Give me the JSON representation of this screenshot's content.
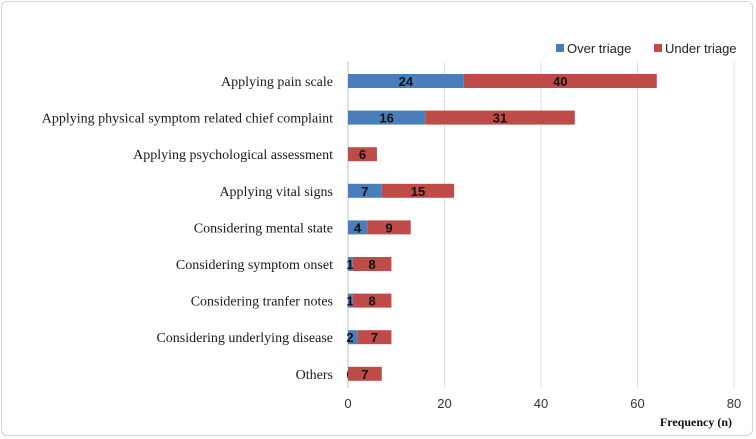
{
  "chart_data": {
    "type": "bar",
    "orientation": "horizontal",
    "stacked": true,
    "categories": [
      "Applying pain scale",
      "Applying physical symptom related chief complaint",
      "Applying psychological assessment",
      "Applying vital signs",
      "Considering mental state",
      "Considering symptom onset",
      "Considering tranfer notes",
      "Considering underlying disease",
      "Others"
    ],
    "series": [
      {
        "name": "Over triage",
        "color": "#4a7ebb",
        "values": [
          24,
          16,
          0,
          7,
          4,
          1,
          1,
          2,
          0
        ],
        "labels": [
          "24",
          "16",
          "",
          "7",
          "4",
          "1",
          "1",
          "2",
          "0"
        ]
      },
      {
        "name": "Under triage",
        "color": "#be4b48",
        "values": [
          40,
          31,
          6,
          15,
          9,
          8,
          8,
          7,
          7
        ],
        "labels": [
          "40",
          "31",
          "6",
          "15",
          "9",
          "8",
          "8",
          "7",
          "7"
        ]
      }
    ],
    "xlabel": "Frequency (n)",
    "xlim": [
      0,
      80
    ],
    "xticks": [
      "0",
      "20",
      "40",
      "60",
      "80"
    ],
    "grid": true,
    "legend": "top-right"
  }
}
